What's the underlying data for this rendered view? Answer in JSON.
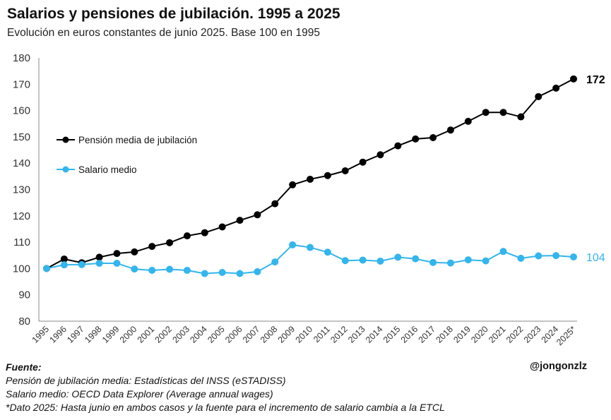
{
  "title": "Salarios y pensiones de jubilación. 1995 a 2025",
  "subtitle": "Evolución en euros constantes de junio 2025. Base 100 en 1995",
  "footer": {
    "heading": "Fuente:",
    "lines": [
      "Pensión de jubilación media: Estadísticas del INSS (eSTADISS)",
      "Salario medio: OECD Data Explorer (Average annual wages)",
      "*Dato 2025: Hasta junio en ambos casos y la fuente para el incremento de salario cambia a la ETCL"
    ],
    "handle": "@jongonzlz"
  },
  "chart_data": {
    "type": "line",
    "categories": [
      "1995",
      "1996",
      "1997",
      "1998",
      "1999",
      "2000",
      "2001",
      "2002",
      "2003",
      "2004",
      "2005",
      "2006",
      "2007",
      "2008",
      "2009",
      "2010",
      "2011",
      "2012",
      "2013",
      "2014",
      "2015",
      "2016",
      "2017",
      "2018",
      "2019",
      "2020",
      "2021",
      "2022",
      "2023",
      "2024",
      "2025*"
    ],
    "ylim": [
      80,
      180
    ],
    "yticks": [
      80,
      90,
      100,
      110,
      120,
      130,
      140,
      150,
      160,
      170,
      180
    ],
    "grid": false,
    "legend_position": "left",
    "series": [
      {
        "name": "Pensión media de jubilación",
        "color": "#000000",
        "values": [
          100,
          103.6,
          102.2,
          104.3,
          105.7,
          106.3,
          108.4,
          109.8,
          112.4,
          113.6,
          115.8,
          118.3,
          120.4,
          124.6,
          131.8,
          133.9,
          135.3,
          137.1,
          140.4,
          143.2,
          146.6,
          149.2,
          149.7,
          152.6,
          155.9,
          159.3,
          159.3,
          157.6,
          165.3,
          168.5,
          172
        ],
        "end_label": "172"
      },
      {
        "name": "Salario medio",
        "color": "#33b5ed",
        "values": [
          100,
          101.4,
          101.5,
          102,
          102,
          99.8,
          99.3,
          99.7,
          99.3,
          98.1,
          98.5,
          98.1,
          98.8,
          102.5,
          109,
          108,
          106.2,
          103,
          103.2,
          102.8,
          104.3,
          103.7,
          102.3,
          102.1,
          103.3,
          102.9,
          106.5,
          103.9,
          104.8,
          104.9,
          104.4
        ],
        "end_label": "104"
      }
    ]
  }
}
